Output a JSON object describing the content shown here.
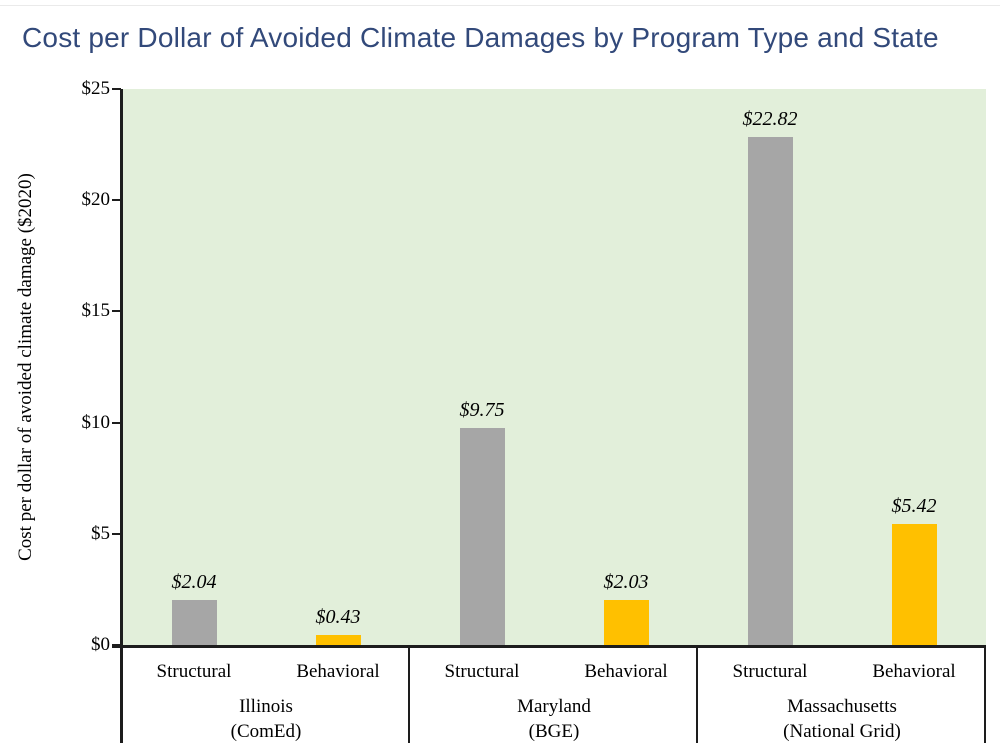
{
  "page": {
    "title": "Cost per Dollar of Avoided Climate Damages by Program Type and State"
  },
  "chart_data": {
    "type": "bar",
    "title": "Cost per Dollar of Avoided Climate Damages by Program Type and State",
    "ylabel": "Cost per dollar of avoided climate damage ($2020)",
    "xlabel": "",
    "ylim": [
      0,
      25
    ],
    "ytick_values": [
      0,
      5,
      10,
      15,
      20,
      25
    ],
    "ytick_labels": [
      "$0",
      "$5",
      "$10",
      "$15",
      "$20",
      "$25"
    ],
    "grid": false,
    "legend": "none",
    "groups": [
      {
        "state": "Illinois",
        "utility": "(ComEd)",
        "bars": [
          {
            "category": "Structural",
            "value": 2.04,
            "label": "$2.04"
          },
          {
            "category": "Behavioral",
            "value": 0.43,
            "label": "$0.43"
          }
        ]
      },
      {
        "state": "Maryland",
        "utility": "(BGE)",
        "bars": [
          {
            "category": "Structural",
            "value": 9.75,
            "label": "$9.75"
          },
          {
            "category": "Behavioral",
            "value": 2.03,
            "label": "$2.03"
          }
        ]
      },
      {
        "state": "Massachusetts",
        "utility": "(National Grid)",
        "bars": [
          {
            "category": "Structural",
            "value": 22.82,
            "label": "$22.82"
          },
          {
            "category": "Behavioral",
            "value": 5.42,
            "label": "$5.42"
          }
        ]
      }
    ],
    "colors": {
      "structural_bar": "#a6a6a6",
      "behavioral_bar": "#ffc000",
      "plot_background": "#e2efda",
      "axis": "#1d1d1d",
      "title_text": "#32497a",
      "label_text": "#000000"
    }
  }
}
